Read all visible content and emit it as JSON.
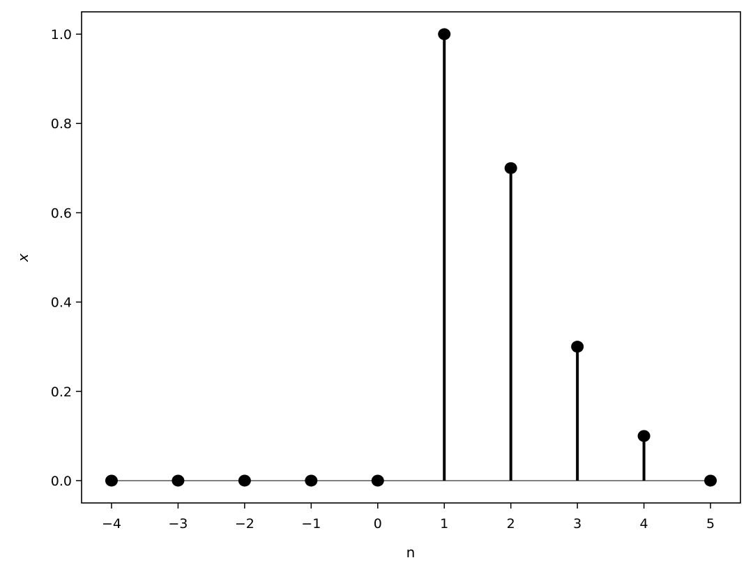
{
  "chart_data": {
    "type": "stem",
    "title": "",
    "xlabel": "n",
    "ylabel": "x",
    "x": [
      -4,
      -3,
      -2,
      -1,
      0,
      1,
      2,
      3,
      4,
      5
    ],
    "values": [
      0,
      0,
      0,
      0,
      0,
      1.0,
      0.7,
      0.3,
      0.1,
      0
    ],
    "xlim": [
      -4.45,
      5.45
    ],
    "ylim": [
      -0.05,
      1.05
    ],
    "xticks": [
      "−4",
      "−3",
      "−2",
      "−1",
      "0",
      "1",
      "2",
      "3",
      "4",
      "5"
    ],
    "yticks": [
      "0.0",
      "0.2",
      "0.4",
      "0.6",
      "0.8",
      "1.0"
    ],
    "grid": false,
    "colors": {
      "marker": "#000000",
      "stem": "#000000",
      "baseline": "#555555"
    }
  }
}
